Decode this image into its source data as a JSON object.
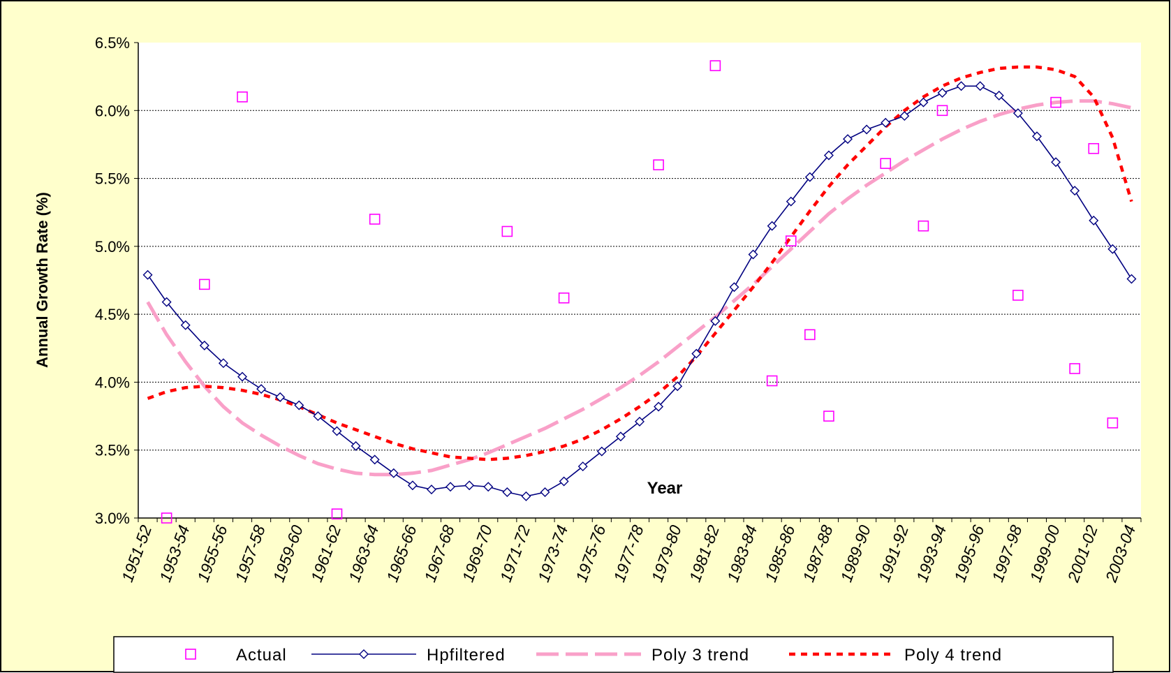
{
  "chart_data": {
    "type": "line",
    "x_label": "Year",
    "y_label": "Annual Growth Rate (%)",
    "categories": [
      "1951-52",
      null,
      "1953-54",
      null,
      "1955-56",
      null,
      "1957-58",
      null,
      "1959-60",
      null,
      "1961-62",
      null,
      "1963-64",
      null,
      "1965-66",
      null,
      "1967-68",
      null,
      "1969-70",
      null,
      "1971-72",
      null,
      "1973-74",
      null,
      "1975-76",
      null,
      "1977-78",
      null,
      "1979-80",
      null,
      "1981-82",
      null,
      "1983-84",
      null,
      "1985-86",
      null,
      "1987-88",
      null,
      "1989-90",
      null,
      "1991-92",
      null,
      "1993-94",
      null,
      "1995-96",
      null,
      "1997-98",
      null,
      "1999-00",
      null,
      "2001-02",
      null,
      "2003-04"
    ],
    "ylim": [
      3.0,
      6.5
    ],
    "yticks": [
      {
        "value": 3.0,
        "label": "3.0%"
      },
      {
        "value": 3.5,
        "label": "3.5%"
      },
      {
        "value": 4.0,
        "label": "4.0%"
      },
      {
        "value": 4.5,
        "label": "4.5%"
      },
      {
        "value": 5.0,
        "label": "5.0%"
      },
      {
        "value": 5.5,
        "label": "5.5%"
      },
      {
        "value": 6.0,
        "label": "6.0%"
      },
      {
        "value": 6.5,
        "label": "6.5%"
      }
    ],
    "grid": true,
    "legend": "bottom",
    "series": [
      {
        "name": "Actual",
        "color": "#ff00ff",
        "marker": "square",
        "line": "none",
        "values": [
          null,
          3.0,
          null,
          4.72,
          null,
          6.1,
          null,
          null,
          null,
          null,
          3.03,
          null,
          5.2,
          null,
          null,
          null,
          null,
          null,
          null,
          5.11,
          null,
          null,
          4.62,
          null,
          null,
          null,
          null,
          5.6,
          null,
          null,
          6.33,
          null,
          null,
          4.01,
          5.04,
          4.35,
          3.75,
          null,
          null,
          5.61,
          null,
          5.15,
          6.0,
          null,
          null,
          null,
          4.64,
          null,
          6.06,
          4.1,
          5.72,
          3.7,
          null
        ]
      },
      {
        "name": "Hpfiltered",
        "color": "#000080",
        "marker": "diamond",
        "line": "solid",
        "values": [
          4.79,
          4.59,
          4.42,
          4.27,
          4.14,
          4.04,
          3.95,
          3.89,
          3.83,
          3.75,
          3.64,
          3.53,
          3.43,
          3.33,
          3.24,
          3.21,
          3.23,
          3.24,
          3.23,
          3.19,
          3.16,
          3.19,
          3.27,
          3.38,
          3.49,
          3.6,
          3.71,
          3.82,
          3.97,
          4.21,
          4.45,
          4.7,
          4.94,
          5.15,
          5.33,
          5.51,
          5.67,
          5.79,
          5.86,
          5.91,
          5.96,
          6.06,
          6.13,
          6.18,
          6.18,
          6.11,
          5.98,
          5.81,
          5.62,
          5.41,
          5.19,
          4.98,
          4.76
        ]
      },
      {
        "name": "Poly 3 trend",
        "color": "#f9a0c8",
        "marker": "none",
        "line": "dashed",
        "values": [
          4.59,
          4.35,
          4.15,
          3.97,
          3.82,
          3.7,
          3.61,
          3.53,
          3.46,
          3.4,
          3.36,
          3.33,
          3.32,
          3.32,
          3.33,
          3.35,
          3.39,
          3.43,
          3.48,
          3.54,
          3.6,
          3.66,
          3.73,
          3.8,
          3.88,
          3.96,
          4.05,
          4.15,
          4.26,
          4.37,
          4.48,
          4.6,
          4.72,
          4.85,
          4.98,
          5.11,
          5.24,
          5.35,
          5.45,
          5.54,
          5.63,
          5.71,
          5.79,
          5.86,
          5.92,
          5.97,
          6.01,
          6.04,
          6.06,
          6.07,
          6.07,
          6.05,
          6.02
        ]
      },
      {
        "name": "Poly 4 trend",
        "color": "#ff0000",
        "marker": "none",
        "line": "dotted",
        "values": [
          3.88,
          3.93,
          3.96,
          3.97,
          3.96,
          3.94,
          3.91,
          3.87,
          3.82,
          3.76,
          3.7,
          3.65,
          3.6,
          3.55,
          3.51,
          3.48,
          3.45,
          3.44,
          3.43,
          3.44,
          3.46,
          3.49,
          3.53,
          3.58,
          3.65,
          3.73,
          3.82,
          3.92,
          4.04,
          4.19,
          4.36,
          4.53,
          4.7,
          4.88,
          5.07,
          5.26,
          5.44,
          5.6,
          5.74,
          5.88,
          6.0,
          6.1,
          6.18,
          6.24,
          6.28,
          6.31,
          6.32,
          6.32,
          6.3,
          6.25,
          6.1,
          5.8,
          5.33
        ]
      }
    ]
  }
}
